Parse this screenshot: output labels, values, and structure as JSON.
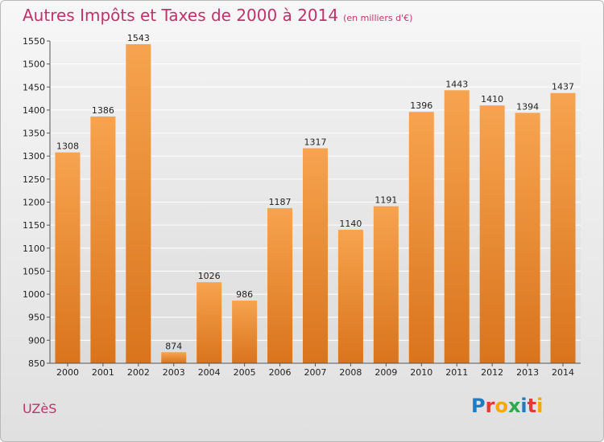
{
  "page": {
    "title": "Autres Impôts et Taxes de 2000 à 2014",
    "title_unit": "(en milliers d'€)",
    "city": "UZèS",
    "logo": "Proxiti"
  },
  "colors": {
    "title": "#c0326a",
    "bar_top": "#f7a34f",
    "bar_bottom": "#d9741c",
    "logo_letters": [
      "#1f7cc4",
      "#e53935",
      "#f6a800",
      "#2fa84f",
      "#1f7cc4",
      "#e53935",
      "#f6a800"
    ]
  },
  "chart_data": {
    "type": "bar",
    "title": "Autres Impôts et Taxes de 2000 à 2014",
    "subtitle": "(en milliers d'€)",
    "xlabel": "",
    "ylabel": "",
    "categories": [
      "2000",
      "2001",
      "2002",
      "2003",
      "2004",
      "2005",
      "2006",
      "2007",
      "2008",
      "2009",
      "2010",
      "2011",
      "2012",
      "2013",
      "2014"
    ],
    "values": [
      1308,
      1386,
      1543,
      874,
      1026,
      986,
      1187,
      1317,
      1140,
      1191,
      1396,
      1443,
      1410,
      1394,
      1437
    ],
    "ylim": [
      850,
      1550
    ],
    "yticks": [
      850,
      900,
      950,
      1000,
      1050,
      1100,
      1150,
      1200,
      1250,
      1300,
      1350,
      1400,
      1450,
      1500,
      1550
    ],
    "grid": true,
    "legend": "none"
  }
}
